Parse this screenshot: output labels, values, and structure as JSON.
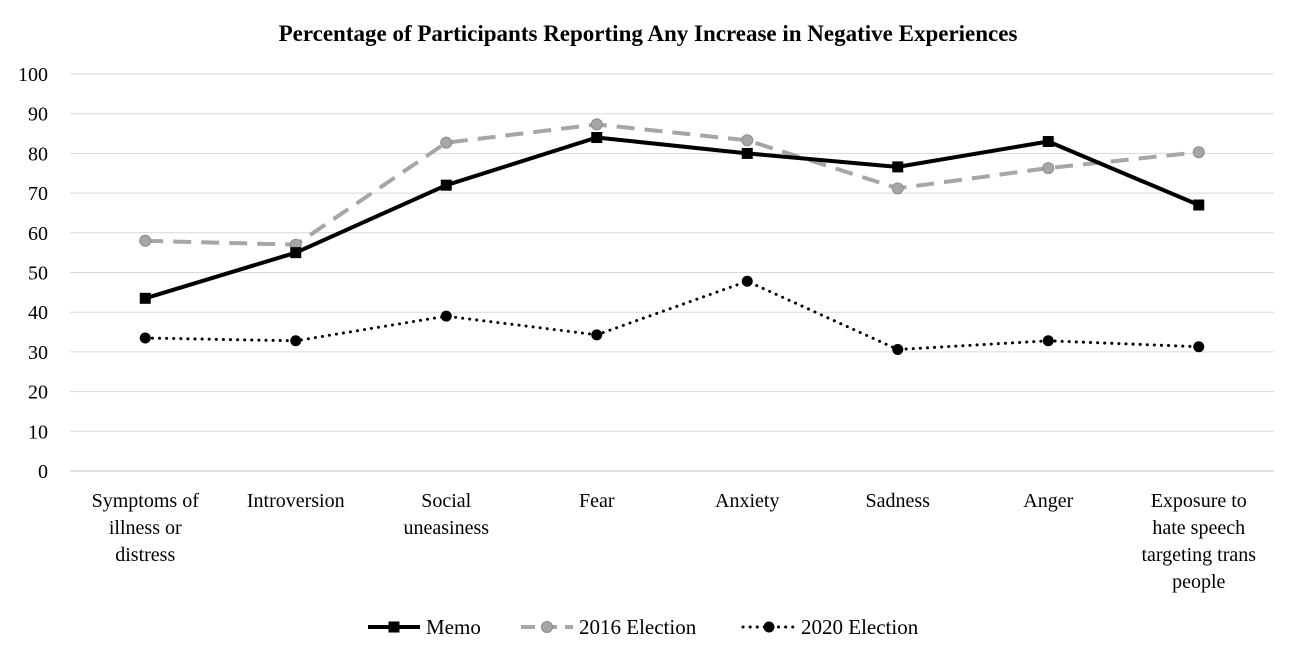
{
  "chart_data": {
    "type": "line",
    "title": "Percentage of Participants Reporting Any Increase in Negative Experiences",
    "xlabel": "",
    "ylabel": "",
    "ylim": [
      0,
      100
    ],
    "yticks": [
      0,
      10,
      20,
      30,
      40,
      50,
      60,
      70,
      80,
      90,
      100
    ],
    "grid": true,
    "legend_position": "bottom",
    "categories": [
      [
        "Symptoms of",
        "illness or",
        "distress"
      ],
      [
        "Introversion"
      ],
      [
        "Social",
        "uneasiness"
      ],
      [
        "Fear"
      ],
      [
        "Anxiety"
      ],
      [
        "Sadness"
      ],
      [
        "Anger"
      ],
      [
        "Exposure to",
        "hate speech",
        "targeting trans",
        "people"
      ]
    ],
    "series": [
      {
        "name": "Memo",
        "values": [
          43.5,
          55,
          72,
          84,
          80,
          76.6,
          83,
          67
        ],
        "color": "#000000",
        "line": "solid",
        "marker": "square"
      },
      {
        "name": "2016 Election",
        "values": [
          58,
          57,
          82.7,
          87.3,
          83.3,
          71.2,
          76.3,
          80.3
        ],
        "color": "#a6a6a6",
        "line": "dashed",
        "marker": "circle"
      },
      {
        "name": "2020 Election",
        "values": [
          33.5,
          32.8,
          39,
          34.3,
          47.8,
          30.6,
          32.8,
          31.3
        ],
        "color": "#000000",
        "line": "dotted",
        "marker": "circle"
      }
    ]
  }
}
